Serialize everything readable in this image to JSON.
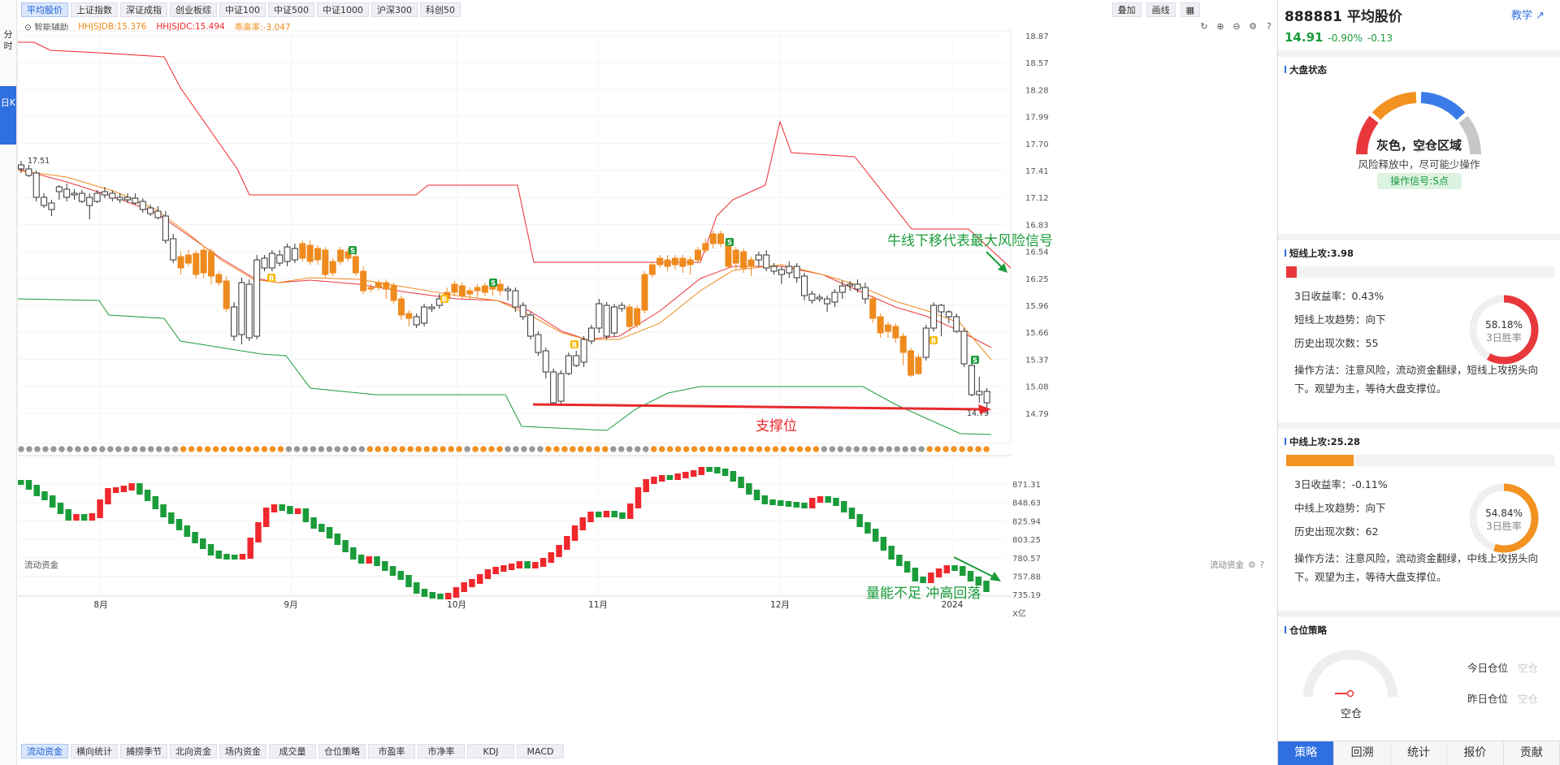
{
  "top_tabs": [
    "平均股价",
    "上证指数",
    "深证成指",
    "创业板综",
    "中证100",
    "中证500",
    "中证1000",
    "沪深300",
    "科创50"
  ],
  "top_right_buttons": [
    "叠加",
    "画线"
  ],
  "leftbar": {
    "fenshi": "分时",
    "rik": "日K"
  },
  "indicators": {
    "assist": "智能辅助",
    "a": "HHJSJDB:15.376",
    "b": "HHJSJDC:15.494",
    "c": "乖离率:-3.047"
  },
  "price_axis": [
    "18.87",
    "18.57",
    "18.28",
    "17.99",
    "17.70",
    "17.41",
    "17.12",
    "16.83",
    "16.54",
    "16.25",
    "15.96",
    "15.66",
    "15.37",
    "15.08",
    "14.79"
  ],
  "flow_axis": [
    "871.31",
    "848.63",
    "825.94",
    "803.25",
    "780.57",
    "757.88",
    "735.19",
    "X亿"
  ],
  "date_labels": [
    "8月",
    "9月",
    "10月",
    "11月",
    "12月",
    "2024"
  ],
  "annotations": {
    "high_label": "17.51",
    "low_label": "14.79",
    "support": "支撑位",
    "bull_signal": "牛线下移代表最大风险信号",
    "volume_note": "量能不足 冲高回落"
  },
  "sub_label": "流动资金",
  "sub_right_label": "流动资金",
  "bottom_tabs": [
    "流动资金",
    "横向统计",
    "捕捞季节",
    "北向资金",
    "场内资金",
    "成交量",
    "仓位策略",
    "市盈率",
    "市净率",
    "KDJ",
    "MACD"
  ],
  "panel": {
    "code": "888881 平均股价",
    "teach": "教学",
    "price": "14.91",
    "pct": "-0.90%",
    "chg": "-0.13",
    "market": {
      "title": "大盘状态",
      "state": "灰色，空仓区域",
      "desc": "风险释放中，尽可能少操作",
      "signal": "操作信号:S点"
    },
    "short": {
      "title": "短线上攻:3.98",
      "bar_fill": 0.04,
      "ret": "3日收益率：0.43%",
      "trend": "短线上攻趋势：向下",
      "count": "历史出现次数：55",
      "method": "操作方法：注意风险，流动资金翻绿，短线上攻拐头向下。观望为主，等待大盘支撑位。",
      "win_pct": "58.18%",
      "win_label": "3日胜率",
      "win": 0.5818
    },
    "mid": {
      "title": "中线上攻:25.28",
      "bar_fill": 0.2528,
      "ret": "3日收益率：-0.11%",
      "trend": "中线上攻趋势：向下",
      "count": "历史出现次数：62",
      "method": "操作方法：注意风险，流动资金翻绿，中线上攻拐头向下。观望为主，等待大盘支撑位。",
      "win_pct": "54.84%",
      "win_label": "3日胜率",
      "win": 0.5484
    },
    "position": {
      "title": "仓位策略",
      "state": "空仓",
      "today": "今日仓位",
      "yesterday": "昨日仓位",
      "today_val": "空仓",
      "yesterday_val": "空仓"
    },
    "nav": [
      "策略",
      "回溯",
      "统计",
      "报价",
      "贡献"
    ]
  },
  "colors": {
    "up": "#f0282d",
    "down": "#1a9c3a",
    "orange": "#ef8a1e",
    "accent": "#2f6fe0"
  }
}
